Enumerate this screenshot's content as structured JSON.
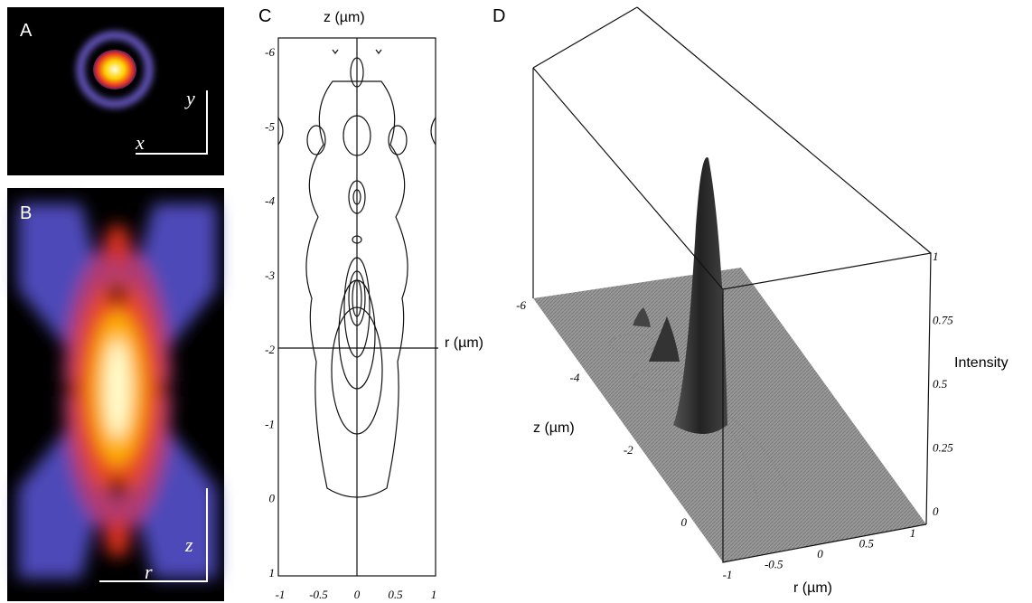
{
  "panels": {
    "a": {
      "label": "A",
      "axes": {
        "x": "x",
        "y": "y"
      }
    },
    "b": {
      "label": "B",
      "axes": {
        "z": "z",
        "r": "r"
      }
    },
    "c": {
      "label": "C",
      "z_label": "z (µm)",
      "r_label": "r (µm)",
      "z_ticks": [
        -6,
        -5,
        -4,
        -3,
        -2,
        -1,
        0,
        1
      ],
      "r_ticks": [
        -1,
        -0.5,
        0,
        0.5,
        1
      ]
    },
    "d": {
      "label": "D",
      "z_label": "z (µm)",
      "r_label": "r (µm)",
      "intensity_label": "Intensity",
      "z_ticks": [
        -6,
        -4,
        -2,
        0
      ],
      "r_ticks": [
        -1,
        -0.5,
        0,
        0.5,
        1
      ],
      "intensity_ticks": [
        0,
        0.25,
        0.5,
        0.75,
        1
      ]
    }
  }
}
